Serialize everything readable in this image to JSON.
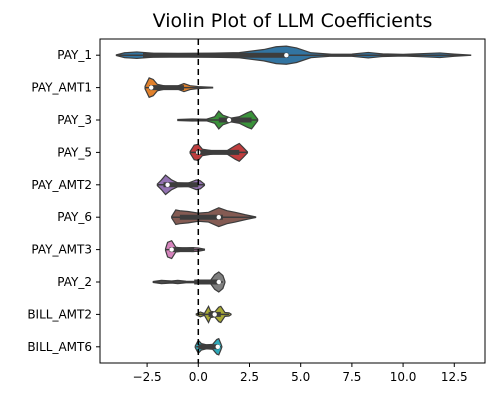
{
  "chart_data": {
    "type": "violin",
    "title": "Violin Plot of LLM Coefficients",
    "xlabel": "",
    "ylabel": "",
    "orientation": "horizontal",
    "xlim": [
      -4.8,
      14.0
    ],
    "x_ticks": [
      -2.5,
      0.0,
      2.5,
      5.0,
      7.5,
      10.0,
      12.5
    ],
    "x_tick_labels": [
      "−2.5",
      "0.0",
      "2.5",
      "5.0",
      "7.5",
      "10.0",
      "12.5"
    ],
    "reference_line": {
      "x": 0,
      "style": "dashed",
      "color": "#000000"
    },
    "grid": false,
    "legend": "none",
    "categories": [
      "PAY_1",
      "PAY_AMT1",
      "PAY_3",
      "PAY_5",
      "PAY_AMT2",
      "PAY_6",
      "PAY_AMT3",
      "PAY_2",
      "BILL_AMT2",
      "BILL_AMT6"
    ],
    "colors": [
      "#3274a1",
      "#e1812c",
      "#3a923a",
      "#c03d3e",
      "#9372b2",
      "#845b53",
      "#d684bd",
      "#7f7f7f",
      "#a9aa35",
      "#2eaaba"
    ],
    "series": [
      {
        "name": "PAY_1",
        "min": -4.0,
        "q1": -2.7,
        "median": 4.3,
        "q3": 4.4,
        "max": 13.3,
        "density": [
          [
            -4.0,
            0.02
          ],
          [
            -3.6,
            0.15
          ],
          [
            -3.0,
            0.2
          ],
          [
            -2.2,
            0.12
          ],
          [
            -1.0,
            0.1
          ],
          [
            0.5,
            0.12
          ],
          [
            2.0,
            0.16
          ],
          [
            3.2,
            0.35
          ],
          [
            3.8,
            0.52
          ],
          [
            4.3,
            0.56
          ],
          [
            4.8,
            0.45
          ],
          [
            5.5,
            0.15
          ],
          [
            6.5,
            0.06
          ],
          [
            7.5,
            0.07
          ],
          [
            8.3,
            0.17
          ],
          [
            9.0,
            0.08
          ],
          [
            10.0,
            0.05
          ],
          [
            11.0,
            0.1
          ],
          [
            11.8,
            0.14
          ],
          [
            12.5,
            0.07
          ],
          [
            13.3,
            0.01
          ]
        ]
      },
      {
        "name": "PAY_AMT1",
        "min": -2.6,
        "q1": -2.4,
        "median": -2.3,
        "q3": -0.7,
        "max": 0.7,
        "density": [
          [
            -2.6,
            0.08
          ],
          [
            -2.4,
            0.6
          ],
          [
            -2.2,
            0.5
          ],
          [
            -2.0,
            0.2
          ],
          [
            -1.5,
            0.06
          ],
          [
            -1.0,
            0.1
          ],
          [
            -0.7,
            0.25
          ],
          [
            -0.4,
            0.12
          ],
          [
            0.0,
            0.06
          ],
          [
            0.7,
            0.02
          ]
        ]
      },
      {
        "name": "PAY_3",
        "min": -1.0,
        "q1": 1.0,
        "median": 1.5,
        "q3": 2.6,
        "max": 2.9,
        "density": [
          [
            -1.0,
            0.03
          ],
          [
            -0.3,
            0.06
          ],
          [
            0.4,
            0.05
          ],
          [
            0.8,
            0.2
          ],
          [
            1.0,
            0.55
          ],
          [
            1.2,
            0.3
          ],
          [
            1.6,
            0.12
          ],
          [
            2.0,
            0.2
          ],
          [
            2.4,
            0.45
          ],
          [
            2.6,
            0.55
          ],
          [
            2.9,
            0.05
          ]
        ]
      },
      {
        "name": "PAY_5",
        "min": -0.4,
        "q1": -0.1,
        "median": 0.0,
        "q3": 2.0,
        "max": 2.4,
        "density": [
          [
            -0.4,
            0.05
          ],
          [
            -0.2,
            0.45
          ],
          [
            0.0,
            0.5
          ],
          [
            0.2,
            0.2
          ],
          [
            0.8,
            0.08
          ],
          [
            1.4,
            0.1
          ],
          [
            1.8,
            0.42
          ],
          [
            2.0,
            0.55
          ],
          [
            2.2,
            0.3
          ],
          [
            2.4,
            0.03
          ]
        ]
      },
      {
        "name": "PAY_AMT2",
        "min": -2.0,
        "q1": -1.7,
        "median": -1.5,
        "q3": 0.0,
        "max": 0.3,
        "density": [
          [
            -2.0,
            0.05
          ],
          [
            -1.8,
            0.3
          ],
          [
            -1.6,
            0.6
          ],
          [
            -1.3,
            0.3
          ],
          [
            -1.0,
            0.12
          ],
          [
            -0.5,
            0.1
          ],
          [
            -0.1,
            0.3
          ],
          [
            0.1,
            0.25
          ],
          [
            0.3,
            0.04
          ]
        ]
      },
      {
        "name": "PAY_6",
        "min": -1.3,
        "q1": -0.9,
        "median": 1.0,
        "q3": 1.2,
        "max": 2.8,
        "density": [
          [
            -1.3,
            0.05
          ],
          [
            -1.1,
            0.45
          ],
          [
            -0.9,
            0.4
          ],
          [
            -0.5,
            0.35
          ],
          [
            0.0,
            0.25
          ],
          [
            0.5,
            0.3
          ],
          [
            1.0,
            0.58
          ],
          [
            1.4,
            0.4
          ],
          [
            1.8,
            0.3
          ],
          [
            2.3,
            0.15
          ],
          [
            2.8,
            0.02
          ]
        ]
      },
      {
        "name": "PAY_AMT3",
        "min": -1.6,
        "q1": -1.4,
        "median": -1.3,
        "q3": -0.2,
        "max": 0.3,
        "density": [
          [
            -1.6,
            0.05
          ],
          [
            -1.5,
            0.45
          ],
          [
            -1.3,
            0.55
          ],
          [
            -1.1,
            0.15
          ],
          [
            -0.7,
            0.08
          ],
          [
            -0.3,
            0.12
          ],
          [
            0.0,
            0.1
          ],
          [
            0.3,
            0.03
          ]
        ]
      },
      {
        "name": "PAY_2",
        "min": -2.2,
        "q1": -0.2,
        "median": 1.0,
        "q3": 1.0,
        "max": 1.2,
        "density": [
          [
            -2.2,
            0.03
          ],
          [
            -1.8,
            0.1
          ],
          [
            -1.3,
            0.06
          ],
          [
            -1.0,
            0.1
          ],
          [
            -0.6,
            0.05
          ],
          [
            0.0,
            0.04
          ],
          [
            0.6,
            0.1
          ],
          [
            0.8,
            0.45
          ],
          [
            1.0,
            0.62
          ],
          [
            1.2,
            0.4
          ],
          [
            1.3,
            0.04
          ]
        ]
      },
      {
        "name": "BILL_AMT2",
        "min": 0.0,
        "q1": 0.5,
        "median": 0.8,
        "q3": 1.1,
        "max": 1.5,
        "density": [
          [
            -0.1,
            0.03
          ],
          [
            0.1,
            0.15
          ],
          [
            0.3,
            0.06
          ],
          [
            0.5,
            0.5
          ],
          [
            0.6,
            0.2
          ],
          [
            0.8,
            0.15
          ],
          [
            1.0,
            0.45
          ],
          [
            1.1,
            0.5
          ],
          [
            1.3,
            0.12
          ],
          [
            1.5,
            0.1
          ],
          [
            1.6,
            0.02
          ]
        ]
      },
      {
        "name": "BILL_AMT6",
        "min": -0.1,
        "q1": 0.0,
        "median": 0.95,
        "q3": 1.0,
        "max": 1.1,
        "density": [
          [
            -0.15,
            0.05
          ],
          [
            0.0,
            0.4
          ],
          [
            0.15,
            0.2
          ],
          [
            0.4,
            0.12
          ],
          [
            0.7,
            0.15
          ],
          [
            0.9,
            0.45
          ],
          [
            1.0,
            0.5
          ],
          [
            1.1,
            0.2
          ],
          [
            1.15,
            0.02
          ]
        ]
      }
    ]
  }
}
